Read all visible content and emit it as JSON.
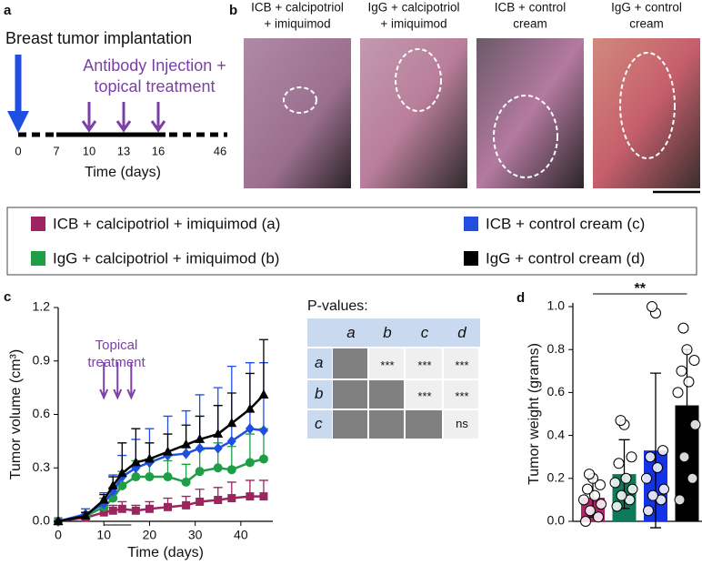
{
  "panel_labels": [
    "a",
    "b",
    "c",
    "d"
  ],
  "panel_a": {
    "title": "Breast tumor implantation",
    "treatment_label": [
      "Antibody Injection +",
      "topical treatment"
    ],
    "timeline_days": [
      0,
      7,
      10,
      13,
      16,
      46
    ],
    "x_label": "Time (days)"
  },
  "panel_b": {
    "captions": [
      [
        "ICB + calcipotriol",
        "+ imiquimod"
      ],
      [
        "IgG + calcipotriol",
        "+ imiquimod"
      ],
      [
        "ICB + control",
        "cream"
      ],
      [
        "IgG + control",
        "cream"
      ]
    ]
  },
  "pvalue_table": {
    "title": "P-values:",
    "columns": [
      "a",
      "b",
      "c",
      "d"
    ],
    "rows": [
      {
        "label": "a",
        "cells": [
          null,
          "***",
          "***",
          "***"
        ]
      },
      {
        "label": "b",
        "cells": [
          null,
          null,
          "***",
          "***"
        ]
      },
      {
        "label": "c",
        "cells": [
          null,
          null,
          null,
          "ns"
        ]
      }
    ]
  },
  "chart_data": [
    {
      "type": "line",
      "x_label": "Time (days)",
      "y_label": "Tumor volume (cm³)",
      "annotation": [
        "Topical",
        "treatment"
      ],
      "x": [
        0,
        6,
        10,
        12,
        14,
        17,
        20,
        24,
        28,
        31,
        35,
        38,
        42,
        45
      ],
      "xlim": [
        0,
        47
      ],
      "xticks": [
        0,
        10,
        20,
        30,
        40
      ],
      "ylim": [
        0,
        1.2
      ],
      "yticks": [
        {
          "value": 0,
          "label": "0.0"
        },
        0.3,
        0.6,
        0.9,
        1.2
      ],
      "series": [
        {
          "name": "ICB + calcipotriol + imiquimod (a)",
          "color": "#9c2560",
          "marker": "square",
          "values": [
            0,
            0.02,
            0.05,
            0.06,
            0.07,
            0.06,
            0.07,
            0.08,
            0.09,
            0.11,
            0.12,
            0.13,
            0.14,
            0.14
          ],
          "errors": [
            0,
            0.01,
            0.03,
            0.03,
            0.04,
            0.03,
            0.04,
            0.05,
            0.05,
            0.07,
            0.07,
            0.09,
            0.09,
            0.09
          ]
        },
        {
          "name": "IgG + calcipotriol + imiquimod (b)",
          "color": "#1f9e48",
          "marker": "circle",
          "values": [
            0,
            0.03,
            0.08,
            0.13,
            0.2,
            0.25,
            0.25,
            0.25,
            0.22,
            0.28,
            0.3,
            0.29,
            0.33,
            0.35
          ],
          "errors": [
            0,
            0.02,
            0.05,
            0.06,
            0.08,
            0.09,
            0.1,
            0.09,
            0.1,
            0.12,
            0.14,
            0.13,
            0.16,
            0.17
          ]
        },
        {
          "name": "ICB + control cream (c)",
          "color": "#1f4fe0",
          "marker": "diamond",
          "values": [
            0,
            0.04,
            0.1,
            0.17,
            0.25,
            0.3,
            0.33,
            0.37,
            0.38,
            0.41,
            0.41,
            0.45,
            0.52,
            0.51
          ],
          "errors": [
            0,
            0.03,
            0.06,
            0.09,
            0.12,
            0.16,
            0.19,
            0.22,
            0.24,
            0.3,
            0.34,
            0.42,
            0.37,
            0.38
          ]
        },
        {
          "name": "IgG + control cream (d)",
          "color": "#000000",
          "marker": "triangle",
          "values": [
            0,
            0.03,
            0.12,
            0.2,
            0.27,
            0.33,
            0.35,
            0.39,
            0.43,
            0.46,
            0.49,
            0.55,
            0.63,
            0.71
          ],
          "errors": [
            0,
            0.02,
            0.03,
            0.05,
            0.17,
            0.19,
            0.09,
            0.1,
            0.11,
            0.13,
            0.16,
            0.17,
            0.2,
            0.31
          ]
        }
      ]
    },
    {
      "type": "bar",
      "y_label": "Tumor weight (grams)",
      "annotation": "**",
      "categories": [
        null,
        null,
        null,
        null
      ],
      "values": [
        0.11,
        0.22,
        0.33,
        0.54
      ],
      "errors": [
        0.09,
        0.16,
        0.36,
        0.26
      ],
      "colors": [
        "#b0246a",
        "#0e7a5b",
        "#1432e6",
        "#000000"
      ],
      "points": [
        [
          0.0,
          0.02,
          0.05,
          0.08,
          0.1,
          0.12,
          0.15,
          0.17,
          0.2,
          0.22
        ],
        [
          0.07,
          0.1,
          0.12,
          0.15,
          0.18,
          0.2,
          0.27,
          0.3,
          0.45,
          0.47
        ],
        [
          0.05,
          0.1,
          0.12,
          0.15,
          0.2,
          0.25,
          0.3,
          0.33,
          0.97,
          1.0
        ],
        [
          0.1,
          0.2,
          0.3,
          0.45,
          0.6,
          0.65,
          0.7,
          0.75,
          0.8,
          0.9
        ]
      ],
      "ylim": [
        0,
        1.0
      ],
      "yticks": [
        {
          "value": 0,
          "label": "0.0"
        },
        0.2,
        0.4,
        0.6,
        0.8,
        {
          "value": 1,
          "label": "1.0"
        }
      ]
    }
  ]
}
